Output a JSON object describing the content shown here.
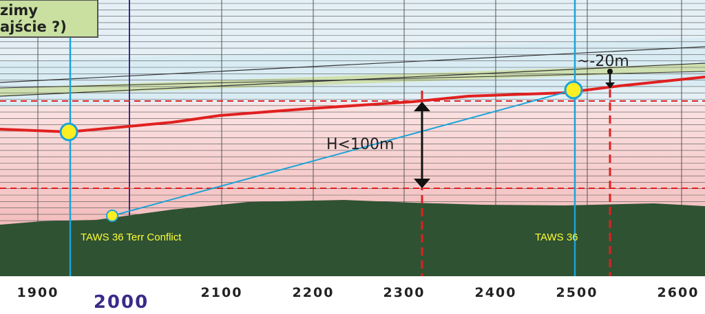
{
  "box": {
    "lines": [
      "zimy",
      "ajście ?)"
    ]
  },
  "annotations": {
    "margin": "~-20m",
    "height": "H<100m",
    "conflict": "TAWS 36 Terr Conflict",
    "taws": "TAWS 36"
  },
  "axis": {
    "labels": [
      "1900",
      "2100",
      "2200",
      "2300",
      "2400",
      "2500",
      "2600"
    ],
    "highlight": "2000"
  }
}
